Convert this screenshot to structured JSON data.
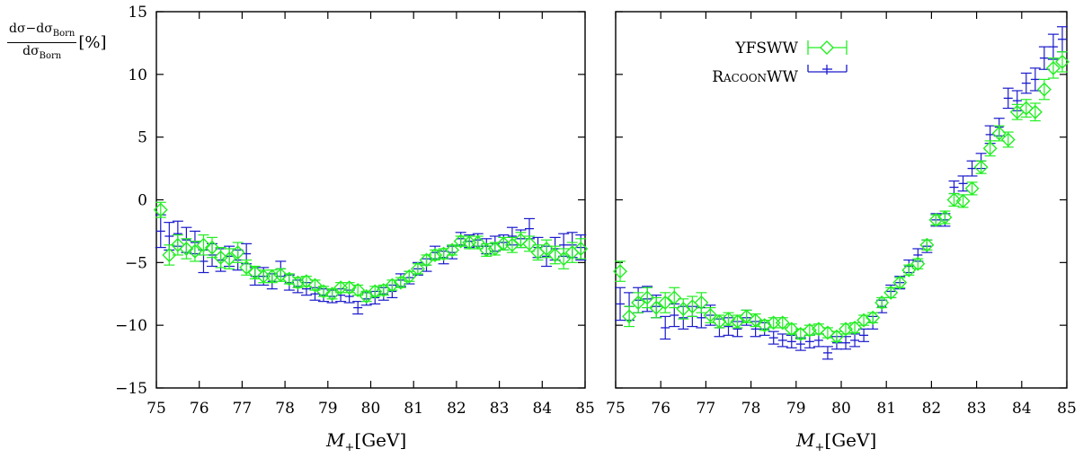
{
  "y_axis_label": {
    "numerator": "dσ−dσ",
    "numerator_sub": "Born",
    "denominator": "dσ",
    "denominator_sub": "Born",
    "unit": "[%]"
  },
  "x_axis_label": {
    "var": "M",
    "sub": "+",
    "unit": "[GeV]"
  },
  "legend": {
    "entries": [
      "YFSWW",
      "RacoonWW"
    ]
  },
  "colors": {
    "YFSWW": "#22ee22",
    "RacoonWW": "#1a1acc"
  },
  "chart_data": [
    {
      "type": "scatter",
      "xlim": [
        75,
        85
      ],
      "ylim": [
        -15,
        15
      ],
      "xticks": [
        75,
        76,
        77,
        78,
        79,
        80,
        81,
        82,
        83,
        84,
        85
      ],
      "yticks": [
        -15,
        -10,
        -5,
        0,
        5,
        10,
        15
      ],
      "x": [
        75.1,
        75.3,
        75.5,
        75.7,
        75.9,
        76.1,
        76.3,
        76.5,
        76.7,
        76.9,
        77.1,
        77.3,
        77.5,
        77.7,
        77.9,
        78.1,
        78.3,
        78.5,
        78.7,
        78.9,
        79.1,
        79.3,
        79.5,
        79.7,
        79.9,
        80.1,
        80.3,
        80.5,
        80.7,
        80.9,
        81.1,
        81.3,
        81.5,
        81.7,
        81.9,
        82.1,
        82.3,
        82.5,
        82.7,
        82.9,
        83.1,
        83.3,
        83.5,
        83.7,
        83.9,
        84.1,
        84.3,
        84.5,
        84.7,
        84.9
      ],
      "series": [
        {
          "name": "YFSWW",
          "values": [
            -0.8,
            -4.4,
            -3.6,
            -3.9,
            -4.1,
            -3.6,
            -3.8,
            -4.6,
            -4.7,
            -4.2,
            -5.4,
            -5.8,
            -6.1,
            -6.1,
            -6.0,
            -6.3,
            -6.6,
            -6.5,
            -6.8,
            -7.3,
            -7.5,
            -7.0,
            -7.0,
            -7.2,
            -7.7,
            -7.3,
            -7.2,
            -6.8,
            -6.6,
            -6.1,
            -5.5,
            -4.8,
            -4.4,
            -4.3,
            -4.0,
            -3.3,
            -3.4,
            -3.4,
            -4.0,
            -3.9,
            -3.5,
            -3.6,
            -3.2,
            -3.5,
            -4.2,
            -3.9,
            -4.4,
            -4.7,
            -4.2,
            -3.9
          ],
          "errors": [
            0.6,
            0.8,
            0.8,
            0.8,
            0.8,
            0.8,
            0.8,
            0.8,
            0.8,
            0.8,
            0.6,
            0.5,
            0.5,
            0.5,
            0.5,
            0.4,
            0.4,
            0.4,
            0.4,
            0.4,
            0.4,
            0.4,
            0.4,
            0.4,
            0.4,
            0.4,
            0.4,
            0.4,
            0.4,
            0.4,
            0.4,
            0.4,
            0.4,
            0.4,
            0.4,
            0.4,
            0.5,
            0.5,
            0.5,
            0.5,
            0.5,
            0.6,
            0.6,
            0.6,
            0.6,
            0.7,
            0.7,
            0.8,
            0.8,
            0.8
          ]
        },
        {
          "name": "RacoonWW",
          "values": [
            -2.5,
            -2.9,
            -2.7,
            -3.2,
            -3.4,
            -4.9,
            -4.4,
            -4.8,
            -4.5,
            -4.8,
            -4.3,
            -6.1,
            -6.1,
            -6.5,
            -5.5,
            -6.6,
            -6.9,
            -7.1,
            -7.5,
            -7.6,
            -7.7,
            -7.6,
            -7.7,
            -8.6,
            -7.9,
            -7.8,
            -7.5,
            -7.3,
            -6.4,
            -6.2,
            -5.5,
            -5.2,
            -4.2,
            -4.6,
            -4.2,
            -3.1,
            -3.3,
            -3.2,
            -3.7,
            -3.5,
            -3.4,
            -2.9,
            -3.1,
            -2.3,
            -3.8,
            -4.5,
            -3.9,
            -3.6,
            -3.6,
            -3.8
          ],
          "errors": [
            1.3,
            1.1,
            1.0,
            1.0,
            0.9,
            0.9,
            0.9,
            0.9,
            0.8,
            0.8,
            0.8,
            0.7,
            0.7,
            0.6,
            0.6,
            0.6,
            0.5,
            0.5,
            0.5,
            0.5,
            0.5,
            0.5,
            0.5,
            0.5,
            0.5,
            0.5,
            0.5,
            0.5,
            0.5,
            0.5,
            0.5,
            0.5,
            0.5,
            0.5,
            0.5,
            0.5,
            0.5,
            0.5,
            0.6,
            0.6,
            0.6,
            0.7,
            0.7,
            0.8,
            0.8,
            0.8,
            0.9,
            0.9,
            1.0,
            1.0
          ]
        }
      ]
    },
    {
      "type": "scatter",
      "xlim": [
        75,
        85
      ],
      "ylim": [
        -15,
        15
      ],
      "xticks": [
        75,
        76,
        77,
        78,
        79,
        80,
        81,
        82,
        83,
        84,
        85
      ],
      "yticks": [
        -15,
        -10,
        -5,
        0,
        5,
        10,
        15
      ],
      "x": [
        75.1,
        75.3,
        75.5,
        75.7,
        75.9,
        76.1,
        76.3,
        76.5,
        76.7,
        76.9,
        77.1,
        77.3,
        77.5,
        77.7,
        77.9,
        78.1,
        78.3,
        78.5,
        78.7,
        78.9,
        79.1,
        79.3,
        79.5,
        79.7,
        79.9,
        80.1,
        80.3,
        80.5,
        80.7,
        80.9,
        81.1,
        81.3,
        81.5,
        81.7,
        81.9,
        82.1,
        82.3,
        82.5,
        82.7,
        82.9,
        83.1,
        83.3,
        83.5,
        83.7,
        83.9,
        84.1,
        84.3,
        84.5,
        84.7,
        84.9
      ],
      "series": [
        {
          "name": "YFSWW",
          "values": [
            -5.7,
            -9.3,
            -8.2,
            -7.8,
            -8.6,
            -8.2,
            -7.8,
            -8.7,
            -8.5,
            -8.2,
            -9.2,
            -9.7,
            -9.5,
            -9.7,
            -9.3,
            -9.6,
            -10.0,
            -9.8,
            -9.8,
            -10.3,
            -10.7,
            -10.4,
            -10.3,
            -10.6,
            -10.9,
            -10.3,
            -10.2,
            -9.6,
            -9.4,
            -8.2,
            -7.4,
            -6.6,
            -5.6,
            -5.1,
            -3.6,
            -1.6,
            -1.4,
            0.0,
            -0.1,
            0.9,
            2.6,
            4.1,
            5.3,
            4.8,
            7.0,
            7.3,
            7.0,
            8.8,
            10.5,
            11.0
          ],
          "errors": [
            0.8,
            0.8,
            0.8,
            0.8,
            0.8,
            0.8,
            0.8,
            0.8,
            0.8,
            0.8,
            0.6,
            0.5,
            0.5,
            0.5,
            0.5,
            0.5,
            0.4,
            0.4,
            0.4,
            0.4,
            0.4,
            0.4,
            0.4,
            0.4,
            0.4,
            0.4,
            0.4,
            0.4,
            0.4,
            0.4,
            0.4,
            0.4,
            0.4,
            0.4,
            0.4,
            0.4,
            0.5,
            0.5,
            0.5,
            0.5,
            0.5,
            0.6,
            0.6,
            0.6,
            0.6,
            0.7,
            0.7,
            0.8,
            0.8,
            0.8
          ]
        },
        {
          "name": "RacoonWW",
          "values": [
            -8.3,
            -8.5,
            -8.0,
            -7.9,
            -8.5,
            -10.2,
            -9.2,
            -9.4,
            -9.3,
            -9.4,
            -9.2,
            -10.2,
            -10.1,
            -10.3,
            -9.4,
            -10.3,
            -10.3,
            -11.0,
            -11.2,
            -11.3,
            -11.5,
            -11.3,
            -11.2,
            -12.2,
            -11.4,
            -11.4,
            -11.2,
            -10.8,
            -9.8,
            -8.5,
            -7.3,
            -6.6,
            -5.3,
            -4.4,
            -3.7,
            -1.6,
            -1.6,
            1.0,
            1.3,
            2.5,
            3.1,
            5.2,
            5.8,
            8.1,
            7.9,
            9.3,
            9.6,
            11.3,
            12.2,
            12.8
          ],
          "errors": [
            1.3,
            1.1,
            1.0,
            1.0,
            0.9,
            0.9,
            0.9,
            0.9,
            0.8,
            0.8,
            0.8,
            0.7,
            0.7,
            0.6,
            0.6,
            0.6,
            0.5,
            0.5,
            0.5,
            0.5,
            0.5,
            0.5,
            0.5,
            0.5,
            0.5,
            0.5,
            0.5,
            0.5,
            0.5,
            0.5,
            0.5,
            0.5,
            0.5,
            0.5,
            0.5,
            0.5,
            0.5,
            0.5,
            0.6,
            0.6,
            0.6,
            0.7,
            0.7,
            0.8,
            0.8,
            0.8,
            0.9,
            0.9,
            1.0,
            1.0
          ]
        }
      ]
    }
  ]
}
